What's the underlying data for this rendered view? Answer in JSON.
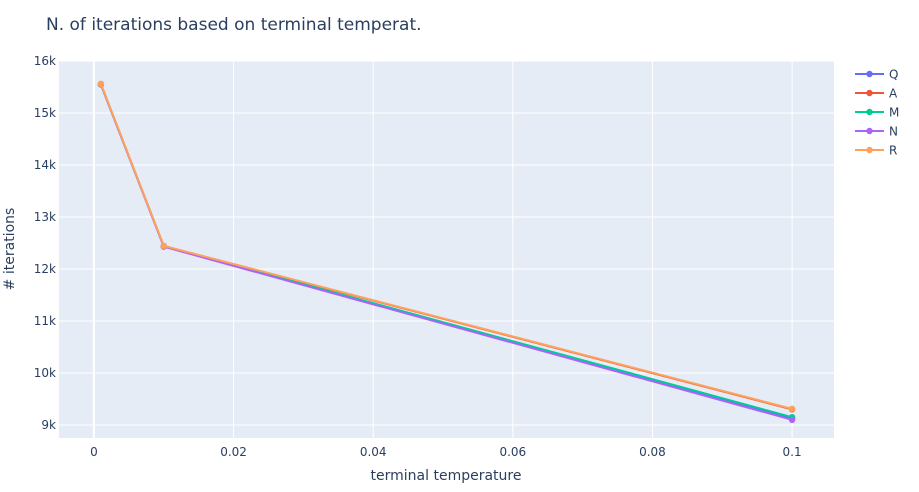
{
  "chart_data": {
    "type": "line",
    "title": "N. of iterations based on terminal temperat.",
    "xlabel": "terminal temperature",
    "ylabel": "# iterations",
    "x": [
      0.001,
      0.01,
      0.1
    ],
    "xlim": [
      -0.005,
      0.106
    ],
    "ylim": [
      8750,
      16000
    ],
    "x_ticks": [
      0,
      0.02,
      0.04,
      0.06,
      0.08,
      0.1
    ],
    "x_tick_labels": [
      "0",
      "0.02",
      "0.04",
      "0.06",
      "0.08",
      "0.1"
    ],
    "y_ticks": [
      9000,
      10000,
      11000,
      12000,
      13000,
      14000,
      15000,
      16000
    ],
    "y_tick_labels": [
      "9k",
      "10k",
      "11k",
      "12k",
      "13k",
      "14k",
      "15k",
      "16k"
    ],
    "grid": true,
    "legend_position": "top-right",
    "plot_background": "#e5ecf6",
    "grid_color": "#ffffff",
    "series": [
      {
        "name": "Q",
        "color": "#636efa",
        "values": [
          15550,
          12440,
          9120
        ]
      },
      {
        "name": "A",
        "color": "#ef553b",
        "values": [
          15550,
          12440,
          9300
        ]
      },
      {
        "name": "M",
        "color": "#00cc96",
        "values": [
          15550,
          12440,
          9150
        ]
      },
      {
        "name": "N",
        "color": "#ab63fa",
        "values": [
          15550,
          12430,
          9100
        ]
      },
      {
        "name": "R",
        "color": "#ffa15a",
        "values": [
          15560,
          12445,
          9310
        ]
      }
    ]
  }
}
